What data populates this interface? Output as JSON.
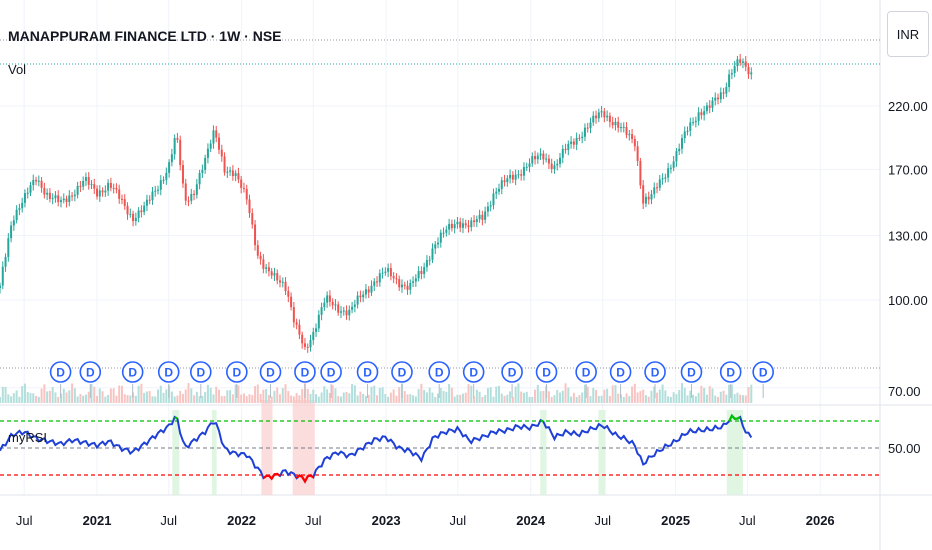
{
  "header": {
    "title": "MANAPPURAM FINANCE LTD · 1W · NSE",
    "volume_label": "Vol",
    "indicator_label": "myRSI",
    "currency": "INR"
  },
  "colors": {
    "up": "#26a69a",
    "down": "#ef5350",
    "rsi_line": "#1e40d6",
    "overbought": "#00c000",
    "oversold": "#ff0000",
    "dividend": "#2962ff"
  },
  "chart_data": [
    {
      "type": "candlestick",
      "title": "MANAPPURAM FINANCE LTD · 1W · NSE",
      "y_scale": "log",
      "y_ticks": [
        70,
        100,
        130,
        170,
        220
      ],
      "y_tick_labels": [
        "70.00",
        "100.00",
        "130.00",
        "170.00",
        "220.00"
      ],
      "x_tick_labels": [
        {
          "date": "2020-07-01",
          "label": "Jul",
          "bold": false
        },
        {
          "date": "2021-01-01",
          "label": "2021",
          "bold": true
        },
        {
          "date": "2021-07-01",
          "label": "Jul",
          "bold": false
        },
        {
          "date": "2022-01-01",
          "label": "2022",
          "bold": true
        },
        {
          "date": "2022-07-01",
          "label": "Jul",
          "bold": false
        },
        {
          "date": "2023-01-01",
          "label": "2023",
          "bold": true
        },
        {
          "date": "2023-07-01",
          "label": "Jul",
          "bold": false
        },
        {
          "date": "2024-01-01",
          "label": "2024",
          "bold": true
        },
        {
          "date": "2024-07-01",
          "label": "Jul",
          "bold": false
        },
        {
          "date": "2025-01-01",
          "label": "2025",
          "bold": true
        },
        {
          "date": "2025-07-01",
          "label": "Jul",
          "bold": false
        },
        {
          "date": "2026-01-01",
          "label": "2026",
          "bold": true
        }
      ],
      "x_range": [
        "2020-05-01",
        "2026-06-01"
      ],
      "price_path": [
        [
          "2020-05-01",
          105
        ],
        [
          "2020-06-01",
          140
        ],
        [
          "2020-07-01",
          150
        ],
        [
          "2020-08-01",
          165
        ],
        [
          "2020-09-01",
          152
        ],
        [
          "2020-10-01",
          148
        ],
        [
          "2020-11-01",
          155
        ],
        [
          "2020-12-01",
          162
        ],
        [
          "2021-01-01",
          155
        ],
        [
          "2021-02-01",
          160
        ],
        [
          "2021-03-01",
          150
        ],
        [
          "2021-04-01",
          140
        ],
        [
          "2021-05-01",
          145
        ],
        [
          "2021-06-01",
          158
        ],
        [
          "2021-07-01",
          172
        ],
        [
          "2021-07-20",
          195
        ],
        [
          "2021-08-10",
          150
        ],
        [
          "2021-09-01",
          155
        ],
        [
          "2021-10-01",
          175
        ],
        [
          "2021-10-25",
          200
        ],
        [
          "2021-11-20",
          170
        ],
        [
          "2021-12-15",
          165
        ],
        [
          "2022-01-15",
          152
        ],
        [
          "2022-02-10",
          120
        ],
        [
          "2022-03-01",
          112
        ],
        [
          "2022-04-01",
          110
        ],
        [
          "2022-04-20",
          107
        ],
        [
          "2022-05-15",
          90
        ],
        [
          "2022-06-10",
          82
        ],
        [
          "2022-07-01",
          88
        ],
        [
          "2022-08-01",
          100
        ],
        [
          "2022-09-01",
          97
        ],
        [
          "2022-10-01",
          95
        ],
        [
          "2022-11-01",
          102
        ],
        [
          "2022-12-01",
          108
        ],
        [
          "2023-01-01",
          112
        ],
        [
          "2023-02-01",
          108
        ],
        [
          "2023-03-01",
          105
        ],
        [
          "2023-04-01",
          112
        ],
        [
          "2023-05-01",
          125
        ],
        [
          "2023-06-01",
          132
        ],
        [
          "2023-07-01",
          138
        ],
        [
          "2023-08-01",
          135
        ],
        [
          "2023-09-01",
          140
        ],
        [
          "2023-10-01",
          155
        ],
        [
          "2023-11-01",
          162
        ],
        [
          "2023-12-01",
          168
        ],
        [
          "2024-01-01",
          175
        ],
        [
          "2024-02-01",
          180
        ],
        [
          "2024-03-01",
          172
        ],
        [
          "2024-04-01",
          185
        ],
        [
          "2024-05-01",
          195
        ],
        [
          "2024-06-01",
          205
        ],
        [
          "2024-07-01",
          215
        ],
        [
          "2024-08-01",
          205
        ],
        [
          "2024-09-01",
          195
        ],
        [
          "2024-09-20",
          190
        ],
        [
          "2024-10-10",
          150
        ],
        [
          "2024-11-01",
          152
        ],
        [
          "2024-12-01",
          165
        ],
        [
          "2025-01-01",
          180
        ],
        [
          "2025-02-01",
          200
        ],
        [
          "2025-03-01",
          215
        ],
        [
          "2025-04-01",
          220
        ],
        [
          "2025-05-01",
          232
        ],
        [
          "2025-05-20",
          255
        ],
        [
          "2025-06-10",
          265
        ],
        [
          "2025-07-01",
          252
        ],
        [
          "2025-07-15",
          248
        ]
      ],
      "dividend_marker": "D",
      "dividend_dates": [
        "2020-10-01",
        "2020-12-15",
        "2021-04-01",
        "2021-07-01",
        "2021-09-20",
        "2021-12-20",
        "2022-03-15",
        "2022-06-10",
        "2022-08-15",
        "2022-11-15",
        "2023-02-10",
        "2023-05-15",
        "2023-08-10",
        "2023-11-15",
        "2024-02-10",
        "2024-05-20",
        "2024-08-15",
        "2024-11-10",
        "2025-02-10",
        "2025-05-20",
        "2025-08-10"
      ]
    },
    {
      "type": "line",
      "title": "myRSI",
      "y_ticks": [
        50
      ],
      "y_tick_labels": [
        "50.00"
      ],
      "ylim": [
        20,
        85
      ],
      "levels": {
        "overbought": 70,
        "mid": 50,
        "oversold": 30
      },
      "rsi_path": [
        [
          "2020-05-01",
          48
        ],
        [
          "2020-06-01",
          60
        ],
        [
          "2020-07-01",
          62
        ],
        [
          "2020-08-01",
          57
        ],
        [
          "2020-09-01",
          55
        ],
        [
          "2020-10-01",
          53
        ],
        [
          "2020-11-01",
          56
        ],
        [
          "2020-12-01",
          54
        ],
        [
          "2021-01-01",
          52
        ],
        [
          "2021-02-01",
          55
        ],
        [
          "2021-03-01",
          50
        ],
        [
          "2021-04-01",
          47
        ],
        [
          "2021-05-01",
          53
        ],
        [
          "2021-06-01",
          60
        ],
        [
          "2021-07-01",
          66
        ],
        [
          "2021-07-20",
          74
        ],
        [
          "2021-08-10",
          50
        ],
        [
          "2021-09-01",
          55
        ],
        [
          "2021-10-01",
          62
        ],
        [
          "2021-10-25",
          71
        ],
        [
          "2021-11-20",
          49
        ],
        [
          "2021-12-15",
          46
        ],
        [
          "2022-01-15",
          45
        ],
        [
          "2022-02-10",
          35
        ],
        [
          "2022-03-01",
          28
        ],
        [
          "2022-04-01",
          30
        ],
        [
          "2022-04-20",
          33
        ],
        [
          "2022-05-15",
          30
        ],
        [
          "2022-06-10",
          27
        ],
        [
          "2022-07-01",
          30
        ],
        [
          "2022-08-01",
          42
        ],
        [
          "2022-09-01",
          47
        ],
        [
          "2022-10-01",
          44
        ],
        [
          "2022-11-01",
          50
        ],
        [
          "2022-12-01",
          56
        ],
        [
          "2023-01-01",
          58
        ],
        [
          "2023-02-01",
          50
        ],
        [
          "2023-03-01",
          48
        ],
        [
          "2023-04-01",
          42
        ],
        [
          "2023-05-01",
          58
        ],
        [
          "2023-06-01",
          62
        ],
        [
          "2023-07-01",
          64
        ],
        [
          "2023-08-01",
          55
        ],
        [
          "2023-09-01",
          58
        ],
        [
          "2023-10-01",
          62
        ],
        [
          "2023-11-01",
          63
        ],
        [
          "2023-12-01",
          66
        ],
        [
          "2024-01-01",
          65
        ],
        [
          "2024-02-01",
          70
        ],
        [
          "2024-03-01",
          58
        ],
        [
          "2024-04-01",
          62
        ],
        [
          "2024-05-01",
          60
        ],
        [
          "2024-06-01",
          64
        ],
        [
          "2024-07-01",
          67
        ],
        [
          "2024-08-01",
          60
        ],
        [
          "2024-09-01",
          56
        ],
        [
          "2024-09-20",
          52
        ],
        [
          "2024-10-10",
          38
        ],
        [
          "2024-11-01",
          44
        ],
        [
          "2024-12-01",
          50
        ],
        [
          "2025-01-01",
          55
        ],
        [
          "2025-02-01",
          62
        ],
        [
          "2025-03-01",
          63
        ],
        [
          "2025-04-01",
          64
        ],
        [
          "2025-05-01",
          66
        ],
        [
          "2025-05-20",
          72
        ],
        [
          "2025-06-10",
          73
        ],
        [
          "2025-07-01",
          60
        ],
        [
          "2025-07-15",
          58
        ]
      ],
      "oversold_bands": [
        [
          "2022-02-20",
          "2022-03-20"
        ],
        [
          "2022-05-10",
          "2022-07-05"
        ]
      ],
      "overbought_bands": [
        [
          "2021-07-10",
          "2021-07-28"
        ],
        [
          "2021-10-18",
          "2021-10-30"
        ],
        [
          "2024-01-25",
          "2024-02-10"
        ],
        [
          "2024-06-20",
          "2024-07-08"
        ],
        [
          "2025-05-10",
          "2025-06-20"
        ]
      ]
    }
  ]
}
